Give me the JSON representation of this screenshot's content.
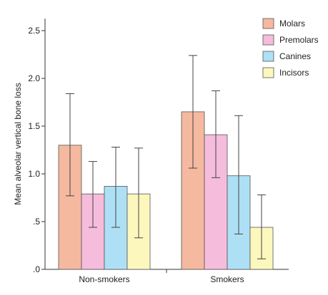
{
  "chart_data": {
    "type": "bar",
    "categories": [
      "Non-smokers",
      "Smokers"
    ],
    "ylabel": "Mean alveolar vertical bone loss",
    "xlabel": "",
    "ylim": [
      0,
      2.6
    ],
    "yticks": [
      0,
      0.5,
      1.0,
      1.5,
      2.0,
      2.5
    ],
    "ytick_labels": [
      ".0",
      ".5",
      "1.0",
      "1.5",
      "2.0",
      "2.5"
    ],
    "grid": false,
    "legend_position": "top-right",
    "series": [
      {
        "name": "Molars",
        "color": "#f5b9a0",
        "values": [
          1.3,
          1.65
        ],
        "err_low": [
          0.77,
          1.06
        ],
        "err_high": [
          1.84,
          2.24
        ]
      },
      {
        "name": "Premolars",
        "color": "#f5bcdc",
        "values": [
          0.79,
          1.41
        ],
        "err_low": [
          0.44,
          0.96
        ],
        "err_high": [
          1.13,
          1.87
        ]
      },
      {
        "name": "Canines",
        "color": "#aee0f5",
        "values": [
          0.87,
          0.98
        ],
        "err_low": [
          0.44,
          0.37
        ],
        "err_high": [
          1.28,
          1.61
        ]
      },
      {
        "name": "Incisors",
        "color": "#fcf7bd",
        "values": [
          0.79,
          0.44
        ],
        "err_low": [
          0.33,
          0.11
        ],
        "err_high": [
          1.27,
          0.78
        ]
      }
    ]
  }
}
